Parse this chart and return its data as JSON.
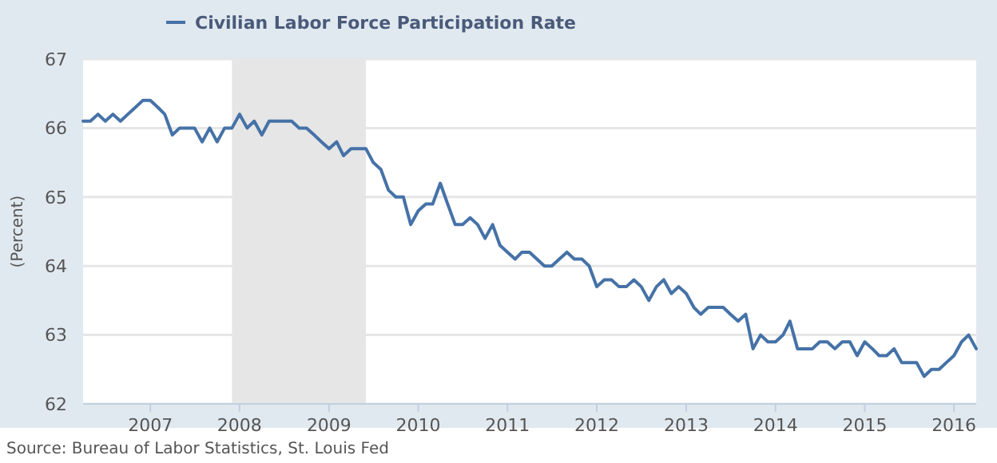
{
  "chart_data": {
    "type": "line",
    "x": [
      "2006-04",
      "2006-05",
      "2006-06",
      "2006-07",
      "2006-08",
      "2006-09",
      "2006-10",
      "2006-11",
      "2006-12",
      "2007-01",
      "2007-02",
      "2007-03",
      "2007-04",
      "2007-05",
      "2007-06",
      "2007-07",
      "2007-08",
      "2007-09",
      "2007-10",
      "2007-11",
      "2007-12",
      "2008-01",
      "2008-02",
      "2008-03",
      "2008-04",
      "2008-05",
      "2008-06",
      "2008-07",
      "2008-08",
      "2008-09",
      "2008-10",
      "2008-11",
      "2008-12",
      "2009-01",
      "2009-02",
      "2009-03",
      "2009-04",
      "2009-05",
      "2009-06",
      "2009-07",
      "2009-08",
      "2009-09",
      "2009-10",
      "2009-11",
      "2009-12",
      "2010-01",
      "2010-02",
      "2010-03",
      "2010-04",
      "2010-05",
      "2010-06",
      "2010-07",
      "2010-08",
      "2010-09",
      "2010-10",
      "2010-11",
      "2010-12",
      "2011-01",
      "2011-02",
      "2011-03",
      "2011-04",
      "2011-05",
      "2011-06",
      "2011-07",
      "2011-08",
      "2011-09",
      "2011-10",
      "2011-11",
      "2011-12",
      "2012-01",
      "2012-02",
      "2012-03",
      "2012-04",
      "2012-05",
      "2012-06",
      "2012-07",
      "2012-08",
      "2012-09",
      "2012-10",
      "2012-11",
      "2012-12",
      "2013-01",
      "2013-02",
      "2013-03",
      "2013-04",
      "2013-05",
      "2013-06",
      "2013-07",
      "2013-08",
      "2013-09",
      "2013-10",
      "2013-11",
      "2013-12",
      "2014-01",
      "2014-02",
      "2014-03",
      "2014-04",
      "2014-05",
      "2014-06",
      "2014-07",
      "2014-08",
      "2014-09",
      "2014-10",
      "2014-11",
      "2014-12",
      "2015-01",
      "2015-02",
      "2015-03",
      "2015-04",
      "2015-05",
      "2015-06",
      "2015-07",
      "2015-08",
      "2015-09",
      "2015-10",
      "2015-11",
      "2015-12",
      "2016-01",
      "2016-02",
      "2016-03",
      "2016-04"
    ],
    "series": [
      {
        "name": "Civilian Labor Force Participation Rate",
        "color": "#4572a7",
        "values": [
          66.1,
          66.1,
          66.2,
          66.1,
          66.2,
          66.1,
          66.2,
          66.3,
          66.4,
          66.4,
          66.3,
          66.2,
          65.9,
          66.0,
          66.0,
          66.0,
          65.8,
          66.0,
          65.8,
          66.0,
          66.0,
          66.2,
          66.0,
          66.1,
          65.9,
          66.1,
          66.1,
          66.1,
          66.1,
          66.0,
          66.0,
          65.9,
          65.8,
          65.7,
          65.8,
          65.6,
          65.7,
          65.7,
          65.7,
          65.5,
          65.4,
          65.1,
          65.0,
          65.0,
          64.6,
          64.8,
          64.9,
          64.9,
          65.2,
          64.9,
          64.6,
          64.6,
          64.7,
          64.6,
          64.4,
          64.6,
          64.3,
          64.2,
          64.1,
          64.2,
          64.2,
          64.1,
          64.0,
          64.0,
          64.1,
          64.2,
          64.1,
          64.1,
          64.0,
          63.7,
          63.8,
          63.8,
          63.7,
          63.7,
          63.8,
          63.7,
          63.5,
          63.7,
          63.8,
          63.6,
          63.7,
          63.6,
          63.4,
          63.3,
          63.4,
          63.4,
          63.4,
          63.3,
          63.2,
          63.3,
          62.8,
          63.0,
          62.9,
          62.9,
          63.0,
          63.2,
          62.8,
          62.8,
          62.8,
          62.9,
          62.9,
          62.8,
          62.9,
          62.9,
          62.7,
          62.9,
          62.8,
          62.7,
          62.7,
          62.8,
          62.6,
          62.6,
          62.6,
          62.4,
          62.5,
          62.5,
          62.6,
          62.7,
          62.9,
          63.0,
          62.8
        ]
      }
    ],
    "ylabel": "(Percent)",
    "xlim": [
      "2006-04",
      "2016-04"
    ],
    "xticks": [
      "2007",
      "2008",
      "2009",
      "2010",
      "2011",
      "2012",
      "2013",
      "2014",
      "2015",
      "2016"
    ],
    "ylim": [
      62,
      67
    ],
    "yticks": [
      62,
      63,
      64,
      65,
      66,
      67
    ],
    "grid": "y",
    "legend": "top",
    "line_style": "solid",
    "bands": [
      {
        "axis": "x",
        "from": "2007-12",
        "to": "2009-06",
        "color": "#e6e6e6"
      }
    ],
    "annotations": [
      "Source: Bureau of Labor Statistics, St. Louis Fed"
    ]
  }
}
